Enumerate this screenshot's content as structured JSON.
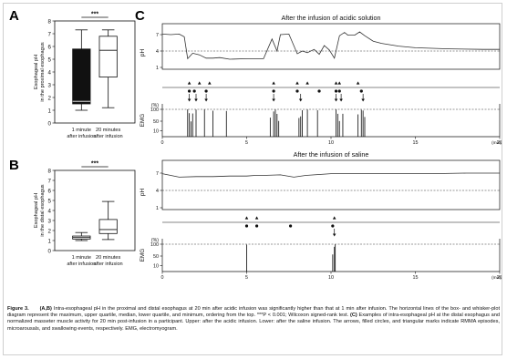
{
  "figure": {
    "panels": {
      "a": "A",
      "b": "B",
      "c": "C"
    },
    "significance": "***",
    "caption": {
      "label": "Figure 3.",
      "ab_marker": "(A,B)",
      "ab_text": "Intra-esophageal pH in the proximal and distal esophagus at 20 min after acidic infusion was significantly higher than that at 1 min after infusion. The horizontal lines of the box- and whisker-plot diagram represent the maximum, upper quartile, median, lower quartile, and minimum, ordering from the top. ***P < 0.001; Wilcoxon signed-rank test.",
      "c_marker": "(C)",
      "c_text": "Examples of intra-esophageal pH at the distal esophagus and normalized masseter muscle activity for 20 min post-infusion in a participant. Upper: after the acidic infusion. Lower: after the saline infusion. The arrows, filled circles, and triangular marks indicate RMMA episodes, microarousals, and swallowing events, respectively. EMG, electromyogram."
    }
  },
  "chart_data": [
    {
      "type": "box",
      "panel": "A",
      "ylabel": "Esophageal pH\nin the proximal esophagus",
      "ylim": [
        0,
        8
      ],
      "yticks": [
        "0",
        "1",
        "2",
        "3",
        "4",
        "5",
        "6",
        "7",
        "8"
      ],
      "categories": [
        "1 minute\nafter infusion",
        "20 minutes\nafter infusion"
      ],
      "boxes": [
        {
          "min": 1.0,
          "q1": 1.5,
          "median": 1.7,
          "q3": 5.8,
          "max": 7.3,
          "fill": "#111111"
        },
        {
          "min": 1.2,
          "q1": 3.6,
          "median": 5.7,
          "q3": 6.8,
          "max": 7.3,
          "fill": "#ffffff"
        }
      ],
      "significance": "***"
    },
    {
      "type": "box",
      "panel": "B",
      "ylabel": "Esophageal pH\nin the distal esophagus",
      "ylim": [
        0,
        8
      ],
      "yticks": [
        "0",
        "1",
        "2",
        "3",
        "4",
        "5",
        "6",
        "7",
        "8"
      ],
      "categories": [
        "1 minute\nafter infusion",
        "20 minutes\nafter infusion"
      ],
      "boxes": [
        {
          "min": 1.0,
          "q1": 1.15,
          "median": 1.3,
          "q3": 1.45,
          "max": 1.8,
          "fill": "#ffffff"
        },
        {
          "min": 1.1,
          "q1": 1.7,
          "median": 2.1,
          "q3": 3.1,
          "max": 4.9,
          "fill": "#ffffff"
        }
      ],
      "significance": "***"
    },
    {
      "type": "line",
      "panel": "C",
      "title": "After the infusion of acidic solution",
      "xlabel": "(min)",
      "xlim": [
        0,
        20
      ],
      "xticks": [
        "0",
        "5",
        "10",
        "15",
        "20"
      ],
      "ph_label": "pH",
      "ph_ticks": [
        "7",
        "4",
        "1"
      ],
      "ph_dashed_at": 4,
      "emg_label": "EMG",
      "emg_unit": "(%)",
      "emg_ticks": [
        "100",
        "50",
        "10"
      ],
      "emg_dashed_at": 100,
      "ph_series": {
        "t": [
          0,
          0.5,
          1.0,
          1.3,
          1.5,
          1.8,
          2.2,
          2.6,
          3.0,
          3.4,
          4.0,
          5.0,
          6.0,
          6.5,
          6.8,
          7.0,
          7.5,
          8.0,
          8.3,
          8.6,
          9.0,
          9.3,
          9.6,
          9.9,
          10.2,
          10.5,
          10.8,
          11.0,
          11.4,
          11.7,
          12.0,
          12.5,
          13.0,
          14.0,
          15.0,
          17.0,
          19.0,
          20.0
        ],
        "ph": [
          7.1,
          7.0,
          7.1,
          6.6,
          2.6,
          3.6,
          3.3,
          2.7,
          2.7,
          2.8,
          2.5,
          2.6,
          2.6,
          6.2,
          4.0,
          7.0,
          7.1,
          3.5,
          4.0,
          3.7,
          4.3,
          3.4,
          5.0,
          4.2,
          2.7,
          6.8,
          7.4,
          6.9,
          6.9,
          7.5,
          6.8,
          5.8,
          5.4,
          4.9,
          4.6,
          4.4,
          4.3,
          4.3
        ]
      },
      "rmma_arrows_min": [
        1.6,
        2.0,
        2.6,
        6.6,
        8.2,
        10.3,
        10.6,
        11.9
      ],
      "microarousals_min": [
        1.6,
        1.9,
        2.6,
        6.6,
        8.0,
        9.3,
        10.3,
        10.5,
        11.8
      ],
      "swallows_min": [
        1.6,
        2.2,
        2.8,
        6.6,
        8.0,
        8.6,
        10.3,
        10.5,
        11.6
      ],
      "emg_bursts_min": [
        1.5,
        1.6,
        1.7,
        1.8,
        2.0,
        2.5,
        3.0,
        3.8,
        6.4,
        6.6,
        6.7,
        6.8,
        6.9,
        8.1,
        8.2,
        8.3,
        8.6,
        9.2,
        10.3,
        10.4,
        10.5,
        10.7,
        11.6,
        11.8,
        11.9,
        12.0
      ]
    },
    {
      "type": "line",
      "panel": "C",
      "title": "After the infusion of saline",
      "xlabel": "(min)",
      "xlim": [
        0,
        20
      ],
      "xticks": [
        "0",
        "5",
        "10",
        "15",
        "20"
      ],
      "ph_label": "pH",
      "ph_ticks": [
        "7",
        "4",
        "1"
      ],
      "ph_dashed_at": 4,
      "emg_label": "EMG",
      "emg_unit": "(%)",
      "emg_ticks": [
        "100",
        "50",
        "10"
      ],
      "emg_dashed_at": 100,
      "ph_series": {
        "t": [
          0,
          0.5,
          1.0,
          2.0,
          3.0,
          4.0,
          5.0,
          5.5,
          6.0,
          7.0,
          7.8,
          8.5,
          9.0,
          10.0,
          10.5,
          12.0,
          14.0,
          16.0,
          18.0,
          20.0
        ],
        "ph": [
          6.9,
          6.6,
          6.3,
          6.4,
          6.4,
          6.5,
          6.5,
          6.6,
          6.6,
          6.7,
          6.3,
          6.6,
          6.7,
          6.9,
          6.9,
          6.9,
          6.9,
          6.9,
          7.0,
          7.0
        ]
      },
      "rmma_arrows_min": [
        10.2
      ],
      "microarousals_min": [
        5.0,
        5.6,
        7.6,
        10.1
      ],
      "swallows_min": [
        5.0,
        5.6,
        10.2
      ],
      "emg_bursts_min": [
        5.0,
        10.1,
        10.2,
        10.25
      ]
    }
  ]
}
